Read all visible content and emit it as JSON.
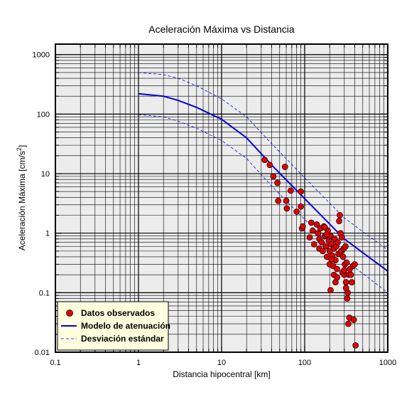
{
  "chart_data": {
    "type": "scatter",
    "title": "Aceleración Máxima vs Distancia",
    "xlabel": "Distancia hipocentral [km]",
    "ylabel_main": "Aceleración Máxima [cm/s",
    "ylabel_sup": "2",
    "ylabel_end": "]",
    "xscale": "log",
    "yscale": "log",
    "xlim": [
      0.1,
      1000
    ],
    "ylim": [
      0.01,
      1500
    ],
    "grid": true,
    "legend_position": "bottom-left",
    "x_ticks": [
      {
        "value": 0.1,
        "label": "0.1"
      },
      {
        "value": 1,
        "label": "1"
      },
      {
        "value": 10,
        "label": "10"
      },
      {
        "value": 100,
        "label": "100"
      },
      {
        "value": 1000,
        "label": "1000"
      }
    ],
    "y_ticks": [
      {
        "value": 0.01,
        "label": "0.01"
      },
      {
        "value": 0.1,
        "label": "0.1"
      },
      {
        "value": 1,
        "label": "1"
      },
      {
        "value": 10,
        "label": "10"
      },
      {
        "value": 100,
        "label": "100"
      },
      {
        "value": 1000,
        "label": "1000"
      }
    ],
    "legend": [
      {
        "label": "Datos observados",
        "style": "marker",
        "color": "#e00000"
      },
      {
        "label": "Modelo de atenuación",
        "style": "solid",
        "color": "#0000e0"
      },
      {
        "label": "Desviación estándar",
        "style": "dashed",
        "color": "#0000e0"
      }
    ],
    "series": [
      {
        "name": "Modelo de atenuación",
        "style": "solid",
        "color": "#0000e0",
        "points": [
          [
            1,
            220
          ],
          [
            2,
            200
          ],
          [
            3,
            170
          ],
          [
            5,
            130
          ],
          [
            10,
            82
          ],
          [
            20,
            40
          ],
          [
            40,
            14
          ],
          [
            100,
            3.8
          ],
          [
            300,
            0.8
          ],
          [
            1000,
            0.23
          ]
        ]
      },
      {
        "name": "Desviación estándar",
        "style": "dashed",
        "color": "#0000e0",
        "points": [
          [
            1,
            500
          ],
          [
            2,
            460
          ],
          [
            3,
            400
          ],
          [
            5,
            300
          ],
          [
            10,
            180
          ],
          [
            20,
            90
          ],
          [
            40,
            32
          ],
          [
            100,
            8.5
          ],
          [
            300,
            1.8
          ],
          [
            1000,
            0.52
          ]
        ]
      },
      {
        "name": "Desviación estándar",
        "style": "dashed",
        "color": "#0000e0",
        "points": [
          [
            1,
            98
          ],
          [
            2,
            90
          ],
          [
            3,
            76
          ],
          [
            5,
            58
          ],
          [
            10,
            36
          ],
          [
            20,
            18
          ],
          [
            40,
            6.2
          ],
          [
            100,
            1.7
          ],
          [
            300,
            0.36
          ],
          [
            1000,
            0.1
          ]
        ]
      },
      {
        "name": "Datos observados",
        "style": "marker",
        "color": "#e00000",
        "points": [
          [
            33,
            17
          ],
          [
            38,
            14
          ],
          [
            42,
            9
          ],
          [
            47,
            7
          ],
          [
            58,
            13
          ],
          [
            48,
            3.5
          ],
          [
            60,
            3.5
          ],
          [
            61,
            2.6
          ],
          [
            68,
            5.2
          ],
          [
            80,
            2.3
          ],
          [
            90,
            5
          ],
          [
            90,
            2.8
          ],
          [
            93,
            1.2
          ],
          [
            95,
            1.3
          ],
          [
            115,
            0.85
          ],
          [
            120,
            1.5
          ],
          [
            125,
            1.1
          ],
          [
            130,
            0.65
          ],
          [
            140,
            1.4
          ],
          [
            145,
            1.0
          ],
          [
            150,
            0.55
          ],
          [
            150,
            0.8
          ],
          [
            155,
            1.2
          ],
          [
            160,
            0.7
          ],
          [
            165,
            0.5
          ],
          [
            170,
            1.3
          ],
          [
            175,
            0.9
          ],
          [
            180,
            0.6
          ],
          [
            185,
            0.4
          ],
          [
            190,
            1.1
          ],
          [
            195,
            0.75
          ],
          [
            200,
            0.3
          ],
          [
            200,
            0.5
          ],
          [
            205,
            0.9
          ],
          [
            210,
            0.65
          ],
          [
            215,
            0.42
          ],
          [
            220,
            0.28
          ],
          [
            225,
            0.55
          ],
          [
            230,
            0.8
          ],
          [
            235,
            0.35
          ],
          [
            240,
            0.6
          ],
          [
            245,
            0.25
          ],
          [
            250,
            0.7
          ],
          [
            255,
            0.45
          ],
          [
            260,
            1.6
          ],
          [
            265,
            2.0
          ],
          [
            270,
            1.0
          ],
          [
            275,
            0.5
          ],
          [
            280,
            0.85
          ],
          [
            285,
            0.22
          ],
          [
            290,
            0.4
          ],
          [
            295,
            0.55
          ],
          [
            300,
            0.2
          ],
          [
            305,
            0.3
          ],
          [
            310,
            0.6
          ],
          [
            315,
            0.15
          ],
          [
            320,
            0.32
          ],
          [
            325,
            0.08
          ],
          [
            330,
            0.1
          ],
          [
            335,
            0.03
          ],
          [
            340,
            0.2
          ],
          [
            345,
            0.038
          ],
          [
            350,
            0.25
          ],
          [
            360,
            0.2
          ],
          [
            370,
            0.15
          ],
          [
            380,
            0.28
          ],
          [
            390,
            0.035
          ],
          [
            400,
            0.3
          ],
          [
            410,
            0.013
          ],
          [
            205,
            0.11
          ],
          [
            210,
            0.36
          ],
          [
            225,
            0.2
          ],
          [
            235,
            0.15
          ],
          [
            245,
            0.18
          ],
          [
            300,
            0.24
          ],
          [
            315,
            0.12
          ],
          [
            185,
            0.95
          ],
          [
            175,
            1.25
          ]
        ]
      }
    ]
  }
}
